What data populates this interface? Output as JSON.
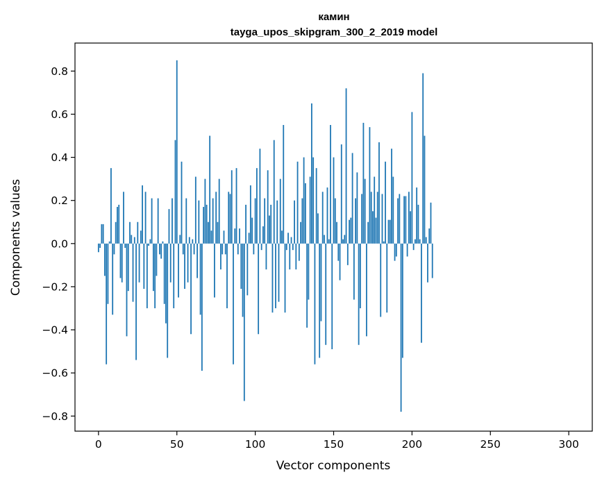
{
  "chart_data": {
    "type": "bar",
    "title": "камин",
    "subtitle": "tayga_upos_skipgram_300_2_2019 model",
    "xlabel": "Vector components",
    "ylabel": "Components values",
    "xlim": [
      -15,
      315
    ],
    "ylim": [
      -0.87,
      0.93
    ],
    "xticks": [
      0,
      50,
      100,
      150,
      200,
      250,
      300
    ],
    "yticks": [
      -0.8,
      -0.6,
      -0.4,
      -0.2,
      0.0,
      0.2,
      0.4,
      0.6,
      0.8
    ],
    "xtick_labels": [
      "0",
      "50",
      "100",
      "150",
      "200",
      "250",
      "300"
    ],
    "ytick_labels": [
      "−0.8",
      "−0.6",
      "−0.4",
      "−0.2",
      "0.0",
      "0.2",
      "0.4",
      "0.6",
      "0.8"
    ],
    "bar_color": "#1f77b4",
    "grid": false,
    "values": [
      -0.04,
      -0.02,
      0.09,
      0.09,
      -0.15,
      -0.56,
      -0.28,
      0.01,
      0.35,
      -0.33,
      -0.05,
      0.1,
      0.17,
      0.18,
      -0.16,
      -0.18,
      0.24,
      -0.02,
      -0.43,
      -0.22,
      0.1,
      0.04,
      -0.27,
      0.03,
      -0.54,
      0.1,
      -0.18,
      0.06,
      0.27,
      -0.21,
      0.24,
      -0.3,
      -0.01,
      0.02,
      0.21,
      -0.22,
      -0.3,
      -0.15,
      0.21,
      -0.05,
      -0.07,
      0.01,
      -0.28,
      -0.37,
      -0.53,
      0.16,
      -0.18,
      0.21,
      -0.3,
      0.48,
      0.85,
      -0.25,
      0.04,
      0.38,
      -0.05,
      -0.21,
      0.21,
      -0.18,
      0.03,
      -0.42,
      0.02,
      -0.05,
      0.31,
      -0.16,
      0.2,
      -0.33,
      -0.59,
      0.17,
      0.3,
      0.18,
      0.1,
      0.5,
      0.06,
      0.21,
      -0.25,
      0.24,
      0.1,
      0.3,
      -0.12,
      -0.05,
      0.06,
      -0.05,
      -0.3,
      0.24,
      0.23,
      0.34,
      -0.56,
      0.07,
      0.35,
      -0.05,
      0.07,
      -0.21,
      -0.34,
      -0.73,
      0.18,
      -0.24,
      0.05,
      0.27,
      0.12,
      -0.05,
      0.21,
      0.35,
      -0.42,
      0.44,
      -0.03,
      0.08,
      0.21,
      -0.12,
      0.34,
      0.13,
      0.18,
      -0.32,
      0.48,
      -0.3,
      0.2,
      -0.27,
      0.3,
      0.06,
      0.55,
      -0.32,
      -0.03,
      0.05,
      -0.12,
      0.03,
      -0.03,
      0.2,
      -0.12,
      0.38,
      -0.08,
      0.1,
      0.21,
      0.4,
      0.28,
      -0.39,
      -0.26,
      0.31,
      0.65,
      0.4,
      -0.56,
      0.35,
      0.14,
      -0.53,
      -0.36,
      0.24,
      0.04,
      -0.47,
      0.26,
      0.02,
      0.55,
      -0.49,
      0.4,
      0.21,
      0.1,
      -0.08,
      -0.17,
      0.46,
      0.02,
      0.04,
      0.72,
      -0.1,
      0.11,
      0.12,
      0.42,
      -0.26,
      0.21,
      0.33,
      -0.47,
      -0.3,
      0.23,
      0.56,
      0.3,
      -0.43,
      0.1,
      0.54,
      0.24,
      0.15,
      0.31,
      0.12,
      0.24,
      0.47,
      -0.34,
      0.23,
      0.01,
      0.38,
      -0.32,
      0.11,
      0.11,
      0.44,
      0.31,
      -0.08,
      -0.06,
      0.21,
      0.23,
      -0.78,
      -0.53,
      0.22,
      0.22,
      -0.06,
      0.24,
      0.15,
      0.61,
      -0.03,
      0.02,
      0.26,
      0.18,
      0.02,
      -0.46,
      0.79,
      0.5,
      0.03,
      -0.18,
      0.07,
      0.19,
      -0.16
    ]
  }
}
